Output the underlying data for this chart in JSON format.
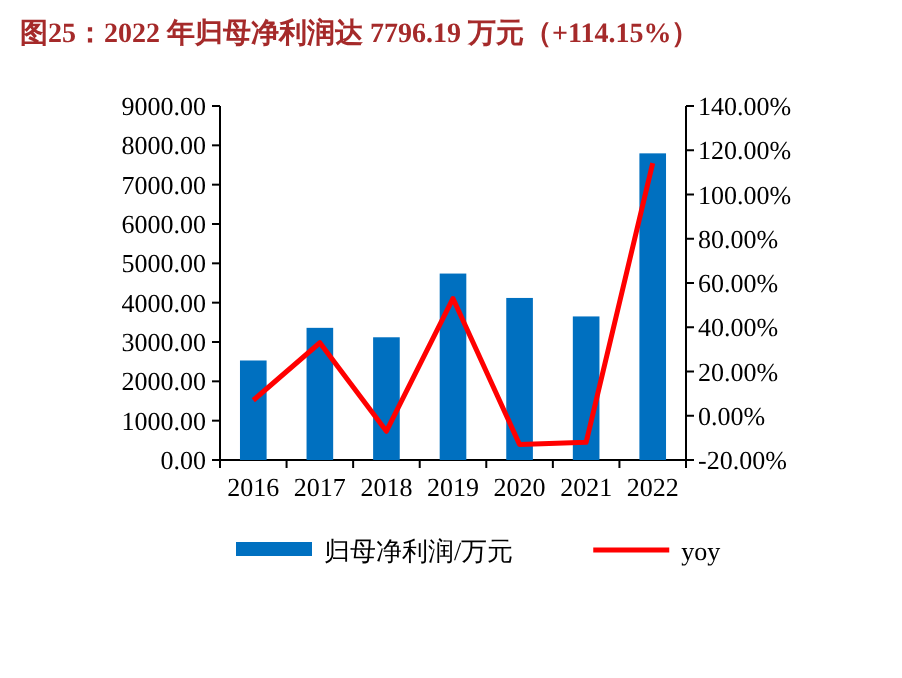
{
  "chart_data": {
    "type": "bar",
    "title": "图25：2022 年归母净利润达 7796.19 万元（+114.15%）",
    "categories": [
      "2016",
      "2017",
      "2018",
      "2019",
      "2020",
      "2021",
      "2022"
    ],
    "series": [
      {
        "name": "归母净利润/万元",
        "color": "#0070c0",
        "values": [
          2530,
          3360,
          3120,
          4740,
          4120,
          3650,
          7796.19
        ]
      },
      {
        "name": "yoy",
        "type": "line",
        "axis": "y2",
        "color": "#ff0000",
        "values": [
          7,
          33,
          -7,
          53,
          -13,
          -12,
          114.15
        ]
      }
    ],
    "ylim": [
      0,
      9000
    ],
    "yticks": [
      {
        "value": 0,
        "label": "0.00"
      },
      {
        "value": 1000,
        "label": "1000.00"
      },
      {
        "value": 2000,
        "label": "2000.00"
      },
      {
        "value": 3000,
        "label": "3000.00"
      },
      {
        "value": 4000,
        "label": "4000.00"
      },
      {
        "value": 5000,
        "label": "5000.00"
      },
      {
        "value": 6000,
        "label": "6000.00"
      },
      {
        "value": 7000,
        "label": "7000.00"
      },
      {
        "value": 8000,
        "label": "8000.00"
      },
      {
        "value": 9000,
        "label": "9000.00"
      }
    ],
    "y2lim": [
      -20,
      140
    ],
    "y2ticks": [
      {
        "value": -20,
        "label": "-20.00%"
      },
      {
        "value": 0,
        "label": "0.00%"
      },
      {
        "value": 20,
        "label": "20.00%"
      },
      {
        "value": 40,
        "label": "40.00%"
      },
      {
        "value": 60,
        "label": "60.00%"
      },
      {
        "value": 80,
        "label": "80.00%"
      },
      {
        "value": 100,
        "label": "100.00%"
      },
      {
        "value": 120,
        "label": "120.00%"
      },
      {
        "value": 140,
        "label": "140.00%"
      }
    ],
    "legend": "bottom",
    "grid": false,
    "marker": "none"
  }
}
